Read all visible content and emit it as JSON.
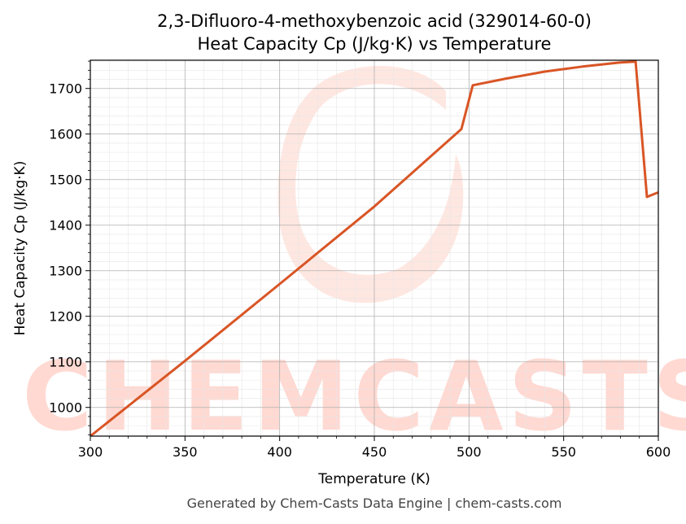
{
  "chart_data": {
    "type": "line",
    "title_line1": "2,3-Difluoro-4-methoxybenzoic acid (329014-60-0)",
    "title_line2": "Heat Capacity Cp (J/kg·K) vs Temperature",
    "xlabel": "Temperature (K)",
    "ylabel": "Heat Capacity Cp (J/kg·K)",
    "xlim": [
      300,
      600
    ],
    "ylim": [
      937,
      1762
    ],
    "xticks": [
      "300",
      "350",
      "400",
      "450",
      "500",
      "550",
      "600"
    ],
    "yticks": [
      "1000",
      "1100",
      "1200",
      "1300",
      "1400",
      "1500",
      "1600",
      "1700"
    ],
    "grid": true,
    "series": [
      {
        "color": "#d95525",
        "x": [
          300,
          350,
          400,
          450,
          496,
          502,
          520,
          540,
          560,
          580,
          588,
          594,
          600
        ],
        "y": [
          937,
          1102,
          1271,
          1441,
          1611,
          1707,
          1722,
          1737,
          1748,
          1757,
          1759,
          1462,
          1472
        ]
      }
    ]
  },
  "watermark": {
    "text": "CHEMCASTS",
    "color": "#ffd9d2"
  },
  "footer": "Generated by Chem-Casts Data Engine | chem-casts.com"
}
